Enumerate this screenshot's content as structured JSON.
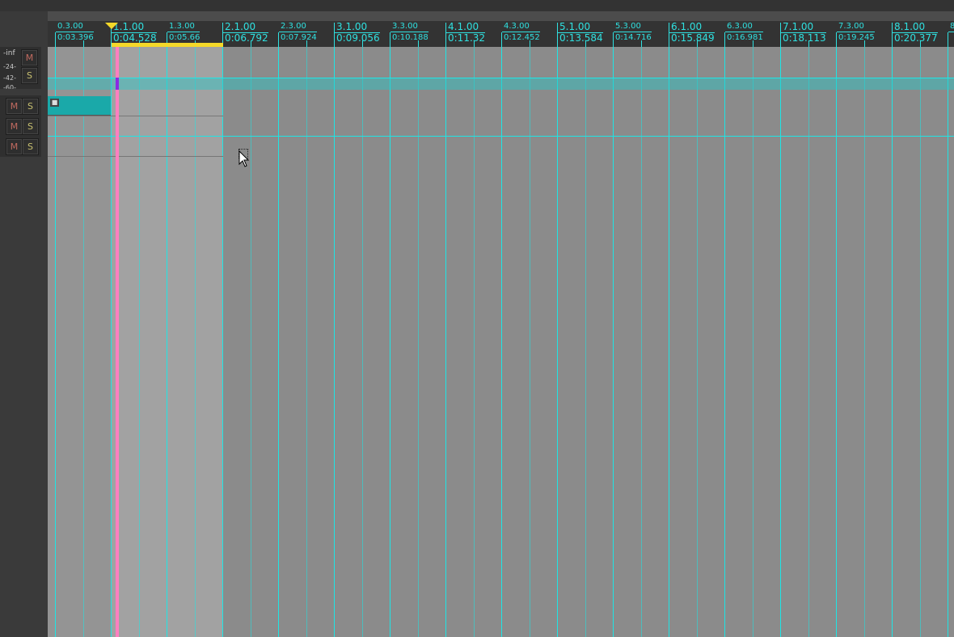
{
  "ruler": {
    "markers": [
      {
        "bar": "0.3.00",
        "time": "0:03.396",
        "major": false
      },
      {
        "bar": "1.1.00",
        "time": "0:04.528",
        "major": true
      },
      {
        "bar": "1.3.00",
        "time": "0:05.66",
        "major": false
      },
      {
        "bar": "2.1.00",
        "time": "0:06.792",
        "major": true
      },
      {
        "bar": "2.3.00",
        "time": "0:07.924",
        "major": false
      },
      {
        "bar": "3.1.00",
        "time": "0:09.056",
        "major": true
      },
      {
        "bar": "3.3.00",
        "time": "0:10.188",
        "major": false
      },
      {
        "bar": "4.1.00",
        "time": "0:11.32",
        "major": true
      },
      {
        "bar": "4.3.00",
        "time": "0:12.452",
        "major": false
      },
      {
        "bar": "5.1.00",
        "time": "0:13.584",
        "major": true
      },
      {
        "bar": "5.3.00",
        "time": "0:14.716",
        "major": false
      },
      {
        "bar": "6.1.00",
        "time": "0:15.849",
        "major": true
      },
      {
        "bar": "6.3.00",
        "time": "0:16.981",
        "major": false
      },
      {
        "bar": "7.1.00",
        "time": "0:18.113",
        "major": true
      },
      {
        "bar": "7.3.00",
        "time": "0:19.245",
        "major": false
      },
      {
        "bar": "8.1.00",
        "time": "0:20.377",
        "major": true
      },
      {
        "bar": "8",
        "time": "",
        "major": false
      }
    ]
  },
  "master": {
    "meter_labels": [
      "-inf",
      "-24-",
      "-42-",
      "-60-"
    ],
    "mute": "M",
    "solo": "S"
  },
  "tracks": [
    {
      "mute": "M",
      "solo": "S",
      "locked": true
    },
    {
      "mute": "M",
      "solo": "S"
    },
    {
      "mute": "M",
      "solo": "S"
    }
  ],
  "colors": {
    "grid": "#1ee5e5",
    "playhead": "#ff7fc0",
    "time_selection": "#f5d829",
    "track_selected": "#1aa9a9"
  }
}
